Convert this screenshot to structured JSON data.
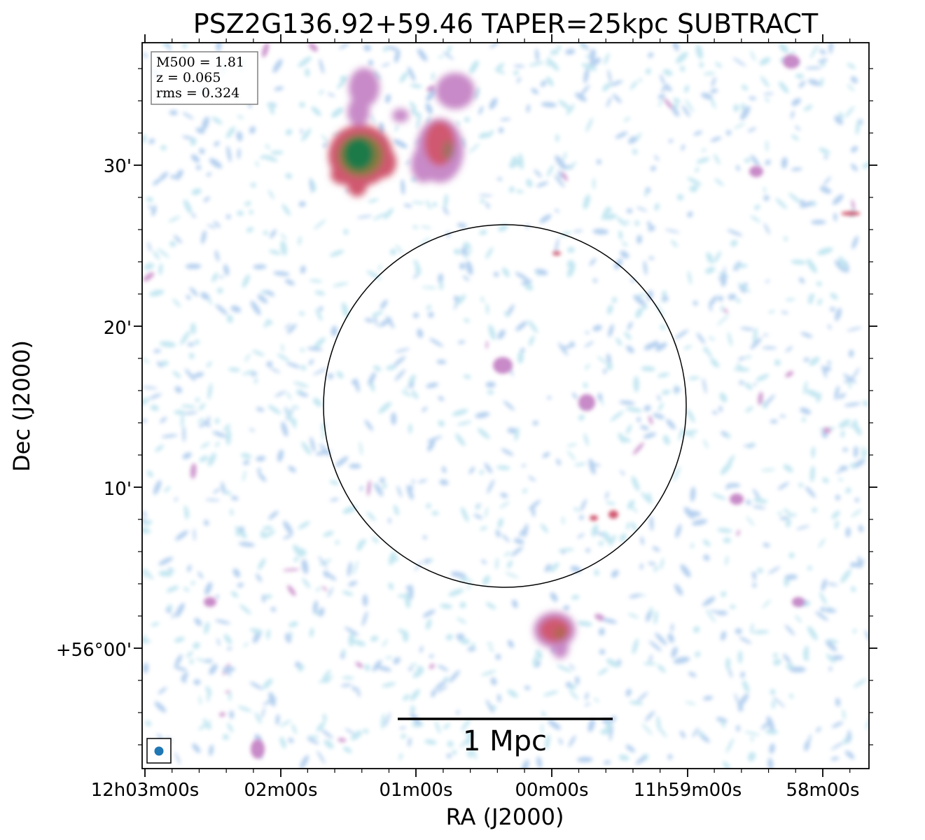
{
  "figure": {
    "title": "PSZ2G136.92+59.46 TAPER=25kpc SUBTRACT",
    "xlabel": "RA (J2000)",
    "ylabel": "Dec (J2000)"
  },
  "ra_ticks": [
    "12h03m00s",
    "02m00s",
    "01m00s",
    "00m00s",
    "11h59m00s",
    "58m00s"
  ],
  "dec_ticks": [
    "30'",
    "20'",
    "10'",
    "+56°00'"
  ],
  "info_box": {
    "line1": "M500 = 1.81",
    "line2": "z = 0.065",
    "line3": "rms = 0.324"
  },
  "scale_bar": {
    "label": "1 Mpc"
  },
  "colors": {
    "faint_noise": "#a8c8ec",
    "cyan_noise": "#b8e2ee",
    "mid_emission": "#c88ac8",
    "bright_emission": "#d05870",
    "peak_emission": "#1e7a48",
    "beam_marker": "#1f77b4",
    "circle": "#000000"
  },
  "sources": [
    {
      "label": "bright-source-northeast",
      "intensity": "peak"
    },
    {
      "label": "extended-source-north",
      "intensity": "bright"
    },
    {
      "label": "source-south",
      "intensity": "bright"
    }
  ]
}
